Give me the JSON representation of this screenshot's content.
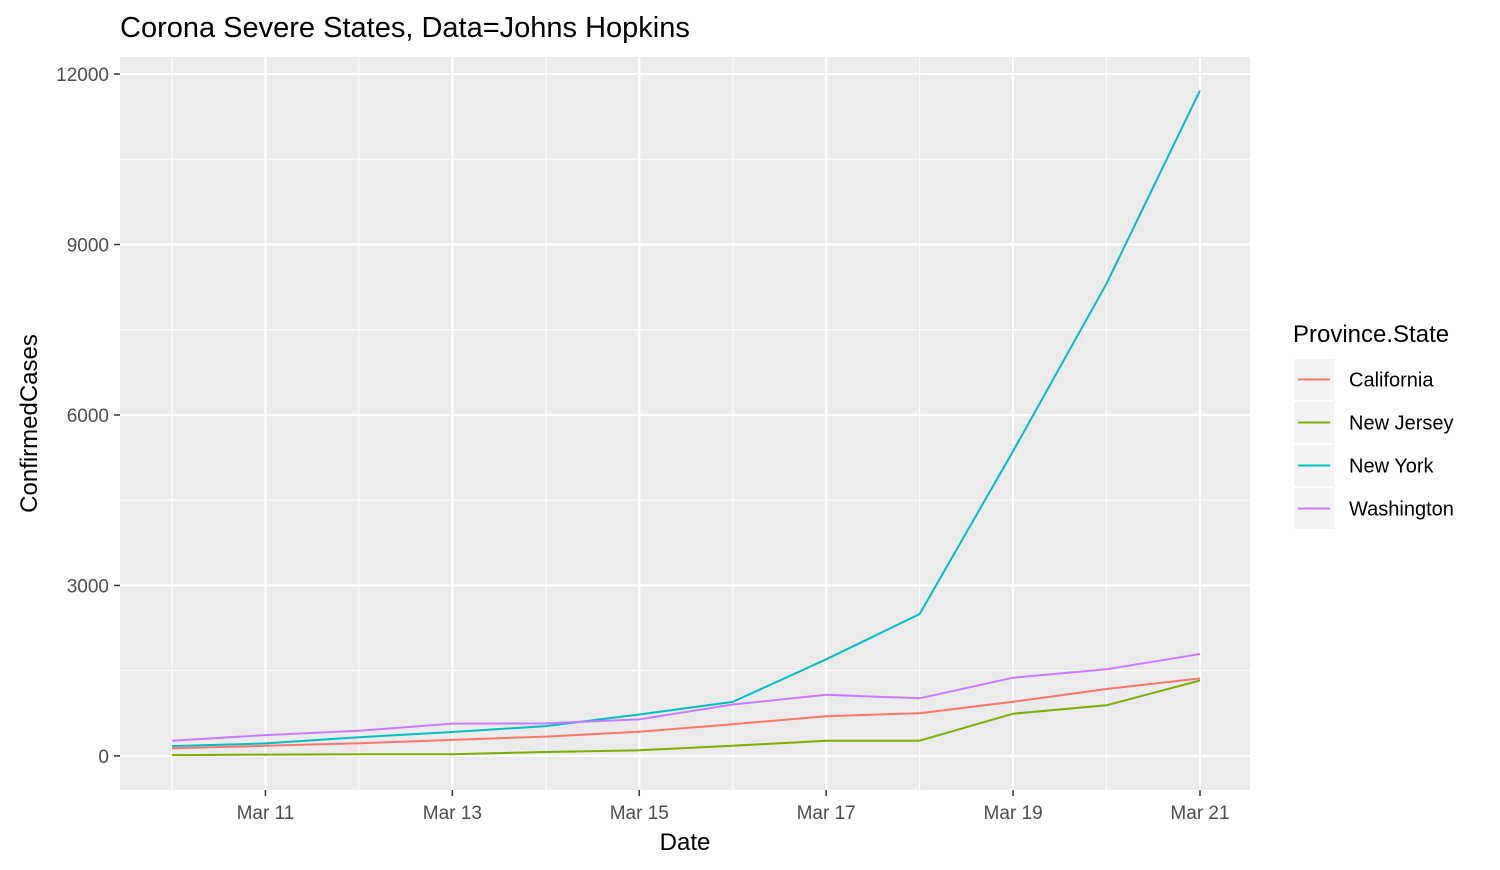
{
  "chart_data": {
    "type": "line",
    "title": "Corona Severe States, Data=Johns Hopkins",
    "xlabel": "Date",
    "ylabel": "ConfirmedCases",
    "x": [
      "Mar 10",
      "Mar 11",
      "Mar 12",
      "Mar 13",
      "Mar 14",
      "Mar 15",
      "Mar 16",
      "Mar 17",
      "Mar 18",
      "Mar 19",
      "Mar 20",
      "Mar 21"
    ],
    "x_ticks": [
      "Mar 11",
      "Mar 13",
      "Mar 15",
      "Mar 17",
      "Mar 19",
      "Mar 21"
    ],
    "y_ticks": [
      0,
      3000,
      6000,
      9000,
      12000
    ],
    "ylim": [
      -600,
      12300
    ],
    "grid": true,
    "legend": {
      "title": "Province.State",
      "position": "right"
    },
    "series": [
      {
        "name": "California",
        "color": "#F8766D",
        "values": [
          133,
          177,
          221,
          282,
          340,
          426,
          557,
          698,
          751,
          952,
          1177,
          1364
        ]
      },
      {
        "name": "New Jersey",
        "color": "#7CAE00",
        "values": [
          15,
          23,
          29,
          29,
          69,
          98,
          178,
          267,
          267,
          742,
          890,
          1327
        ]
      },
      {
        "name": "New York",
        "color": "#00BFC4",
        "values": [
          173,
          220,
          328,
          421,
          524,
          729,
          950,
          1700,
          2495,
          5365,
          8310,
          11710
        ]
      },
      {
        "name": "Washington",
        "color": "#C77CFF",
        "values": [
          267,
          366,
          442,
          568,
          572,
          643,
          904,
          1076,
          1014,
          1376,
          1524,
          1793
        ]
      }
    ]
  }
}
